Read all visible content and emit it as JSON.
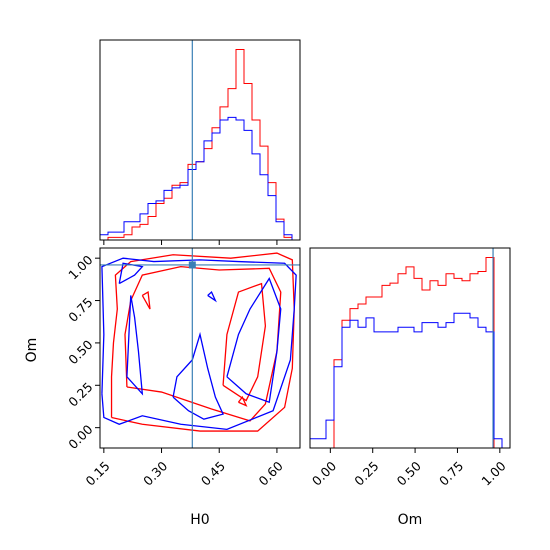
{
  "chart_data": {
    "type": "corner",
    "parameters": [
      "H0",
      "Om"
    ],
    "truths": {
      "H0": 0.38,
      "Om": 0.96
    },
    "colors": {
      "series_a": "#ff0000",
      "series_b": "#0000ff",
      "truth": "#3a7fb5"
    },
    "H0_axis": {
      "label": "H0",
      "range": [
        0.14,
        0.66
      ],
      "ticks": [
        "0.15",
        "0.30",
        "0.45",
        "0.60"
      ],
      "tick_values": [
        0.15,
        0.3,
        0.45,
        0.6
      ]
    },
    "Om_axis": {
      "label": "Om",
      "range": [
        -0.12,
        1.06
      ],
      "ticks": [
        "0.00",
        "0.25",
        "0.50",
        "0.75",
        "1.00"
      ],
      "tick_values": [
        0.0,
        0.25,
        0.5,
        0.75,
        1.0
      ]
    },
    "hist_H0": {
      "bin_edges": [
        0.14,
        0.1608,
        0.1816,
        0.2024,
        0.2232,
        0.244,
        0.2648,
        0.2856,
        0.3064,
        0.3272,
        0.348,
        0.3688,
        0.3896,
        0.4104,
        0.4312,
        0.452,
        0.4728,
        0.4936,
        0.5144,
        0.5352,
        0.556,
        0.5768,
        0.5976,
        0.6184,
        0.6392,
        0.66
      ],
      "series_a": [
        0,
        1,
        1,
        2,
        5,
        6,
        9,
        14,
        16,
        21,
        22,
        29,
        30,
        35,
        43,
        51,
        58,
        73,
        60,
        46,
        36,
        22,
        8,
        1,
        0
      ],
      "series_b": [
        2,
        3,
        3,
        7,
        7,
        10,
        14,
        15,
        19,
        20,
        21,
        27,
        30,
        38,
        41,
        46,
        47,
        46,
        42,
        33,
        25,
        17,
        7,
        2,
        0
      ]
    },
    "hist_Om": {
      "bin_edges": [
        -0.12,
        -0.0728,
        -0.0256,
        0.0216,
        0.0688,
        0.116,
        0.1632,
        0.2104,
        0.2576,
        0.3048,
        0.352,
        0.3992,
        0.4464,
        0.4936,
        0.5408,
        0.588,
        0.6352,
        0.6824,
        0.7296,
        0.7768,
        0.824,
        0.8712,
        0.9184,
        0.9656,
        1.0128,
        1.06
      ],
      "series_a": [
        0,
        0,
        0,
        38,
        55,
        60,
        62,
        65,
        65,
        70,
        71,
        75,
        78,
        73,
        68,
        72,
        70,
        75,
        73,
        72,
        75,
        76,
        82,
        0,
        0
      ],
      "series_b": [
        4,
        4,
        12,
        35,
        52,
        55,
        52,
        56,
        50,
        50,
        50,
        52,
        52,
        50,
        54,
        54,
        52,
        54,
        58,
        58,
        56,
        52,
        50,
        4,
        0
      ]
    },
    "contours_2d": {
      "series_a": [
        [
          [
            0.17,
            0.06
          ],
          [
            0.25,
            0.02
          ],
          [
            0.4,
            -0.02
          ],
          [
            0.55,
            -0.02
          ],
          [
            0.62,
            0.12
          ],
          [
            0.64,
            0.35
          ],
          [
            0.645,
            0.7
          ],
          [
            0.64,
            0.99
          ],
          [
            0.6,
            1.03
          ],
          [
            0.48,
            1.0
          ],
          [
            0.33,
            1.02
          ],
          [
            0.22,
            0.98
          ],
          [
            0.18,
            0.9
          ],
          [
            0.185,
            0.7
          ],
          [
            0.175,
            0.5
          ],
          [
            0.17,
            0.3
          ],
          [
            0.17,
            0.06
          ]
        ],
        [
          [
            0.21,
            0.24
          ],
          [
            0.3,
            0.21
          ],
          [
            0.43,
            0.11
          ],
          [
            0.53,
            0.04
          ],
          [
            0.57,
            0.14
          ],
          [
            0.6,
            0.45
          ],
          [
            0.61,
            0.8
          ],
          [
            0.58,
            0.94
          ],
          [
            0.45,
            0.93
          ],
          [
            0.35,
            0.95
          ],
          [
            0.25,
            0.9
          ],
          [
            0.22,
            0.75
          ],
          [
            0.205,
            0.55
          ],
          [
            0.21,
            0.24
          ]
        ],
        [
          [
            0.46,
            0.25
          ],
          [
            0.52,
            0.16
          ],
          [
            0.55,
            0.3
          ],
          [
            0.57,
            0.6
          ],
          [
            0.56,
            0.85
          ],
          [
            0.5,
            0.8
          ],
          [
            0.47,
            0.55
          ],
          [
            0.46,
            0.25
          ]
        ],
        [
          [
            0.25,
            0.78
          ],
          [
            0.27,
            0.7
          ],
          [
            0.265,
            0.8
          ],
          [
            0.25,
            0.78
          ]
        ],
        [
          [
            0.5,
            0.15
          ],
          [
            0.52,
            0.13
          ],
          [
            0.51,
            0.18
          ],
          [
            0.5,
            0.15
          ]
        ]
      ],
      "series_b": [
        [
          [
            0.145,
            0.2
          ],
          [
            0.15,
            0.55
          ],
          [
            0.145,
            0.95
          ],
          [
            0.2,
            1.0
          ],
          [
            0.28,
            0.98
          ],
          [
            0.4,
            0.99
          ],
          [
            0.5,
            0.98
          ],
          [
            0.62,
            0.97
          ],
          [
            0.65,
            0.9
          ],
          [
            0.645,
            0.7
          ],
          [
            0.635,
            0.4
          ],
          [
            0.59,
            0.1
          ],
          [
            0.47,
            -0.01
          ],
          [
            0.35,
            0.02
          ],
          [
            0.25,
            0.07
          ],
          [
            0.19,
            0.02
          ],
          [
            0.15,
            0.06
          ],
          [
            0.145,
            0.2
          ]
        ],
        [
          [
            0.21,
            0.3
          ],
          [
            0.25,
            0.2
          ],
          [
            0.24,
            0.45
          ],
          [
            0.23,
            0.65
          ],
          [
            0.22,
            0.78
          ],
          [
            0.21,
            0.3
          ]
        ],
        [
          [
            0.33,
            0.18
          ],
          [
            0.37,
            0.1
          ],
          [
            0.41,
            0.05
          ],
          [
            0.46,
            0.08
          ],
          [
            0.44,
            0.18
          ],
          [
            0.42,
            0.35
          ],
          [
            0.4,
            0.55
          ],
          [
            0.38,
            0.4
          ],
          [
            0.34,
            0.3
          ],
          [
            0.33,
            0.18
          ]
        ],
        [
          [
            0.47,
            0.3
          ],
          [
            0.52,
            0.2
          ],
          [
            0.58,
            0.15
          ],
          [
            0.6,
            0.45
          ],
          [
            0.61,
            0.7
          ],
          [
            0.58,
            0.88
          ],
          [
            0.53,
            0.7
          ],
          [
            0.5,
            0.55
          ],
          [
            0.47,
            0.3
          ]
        ],
        [
          [
            0.19,
            0.85
          ],
          [
            0.23,
            0.9
          ],
          [
            0.25,
            0.95
          ],
          [
            0.2,
            0.97
          ],
          [
            0.19,
            0.85
          ]
        ],
        [
          [
            0.42,
            0.78
          ],
          [
            0.44,
            0.75
          ],
          [
            0.43,
            0.8
          ],
          [
            0.42,
            0.78
          ]
        ]
      ]
    }
  }
}
